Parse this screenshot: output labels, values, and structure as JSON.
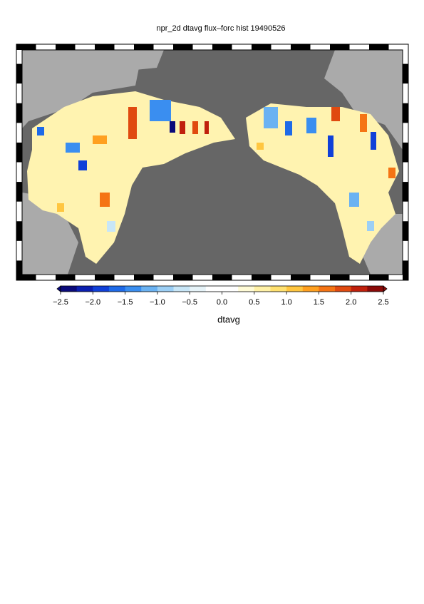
{
  "title": "npr_2d dtavg flux–forc hist 19490526",
  "colorbar": {
    "label": "dtavg",
    "range": [
      -2.5,
      2.5
    ],
    "colors": [
      "#0a0a7a",
      "#0b1fb0",
      "#1040d8",
      "#1e6ae8",
      "#3a8ef0",
      "#6ab2f2",
      "#9ccff5",
      "#c8e6f7",
      "#e6f3f8",
      "#ffffff",
      "#ffffff",
      "#fffbd6",
      "#fff1a6",
      "#ffe170",
      "#ffc640",
      "#ffa020",
      "#f57414",
      "#e04a10",
      "#c0200c",
      "#8a0a08"
    ],
    "ticks": [
      {
        "value": -2.5,
        "label": "−2.5"
      },
      {
        "value": -2,
        "label": "−2.0"
      },
      {
        "value": -1.5,
        "label": "−1.5"
      },
      {
        "value": -1,
        "label": "−1.0"
      },
      {
        "value": -0.5,
        "label": "−0.5"
      },
      {
        "value": 0,
        "label": "0.0"
      },
      {
        "value": 0.5,
        "label": "0.5"
      },
      {
        "value": 1,
        "label": "1.0"
      },
      {
        "value": 1.5,
        "label": "1.5"
      },
      {
        "value": 2,
        "label": "2.0"
      },
      {
        "value": 2.5,
        "label": "2.5"
      }
    ]
  }
}
